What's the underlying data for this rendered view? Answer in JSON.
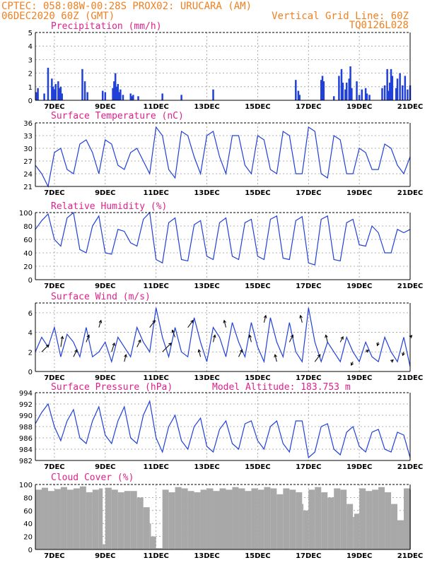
{
  "header": {
    "line1_left": "CPTEC:   058:08W-00:28S   PROX02: URUCARA (AM)",
    "line2_left": "06DEC2020 60Z (GMT)",
    "line2_right": "Vertical Grid Line: 60Z",
    "line3_right": "TQ0126L028"
  },
  "x_axis": {
    "start_day": 6.25,
    "end_day": 21,
    "tick_days": [
      7,
      9,
      11,
      13,
      15,
      17,
      19,
      21
    ],
    "tick_labels": [
      "7DEC",
      "9DEC",
      "11DEC",
      "13DEC",
      "15DEC",
      "17DEC",
      "19DEC",
      "21DEC"
    ]
  },
  "colors": {
    "line": "#2040d8",
    "cloud": "#a8a8a8",
    "arrow": "#000000",
    "title": "#e0208c",
    "header": "#f08020"
  },
  "chart_data": [
    {
      "type": "bar",
      "title": "Precipitation (mm/h)",
      "ylim": [
        0,
        5
      ],
      "yticks": [
        0,
        1,
        2,
        3,
        4,
        5
      ],
      "x": [
        6.3,
        6.35,
        6.6,
        6.75,
        6.9,
        6.95,
        7.0,
        7.05,
        7.15,
        7.2,
        7.25,
        7.3,
        8.1,
        8.2,
        8.3,
        8.9,
        9.0,
        9.3,
        9.35,
        9.4,
        9.45,
        9.5,
        9.55,
        9.6,
        9.7,
        10.0,
        10.05,
        10.1,
        10.3,
        11.25,
        12.0,
        13.25,
        16.5,
        16.6,
        16.65,
        17.5,
        17.55,
        17.6,
        18.0,
        18.2,
        18.3,
        18.35,
        18.45,
        18.5,
        18.6,
        18.65,
        18.7,
        18.9,
        19.0,
        19.1,
        19.25,
        19.3,
        19.4,
        19.9,
        20.0,
        20.1,
        20.15,
        20.2,
        20.25,
        20.3,
        20.45,
        20.5,
        20.6,
        20.7,
        20.8,
        20.9,
        21.0
      ],
      "values": [
        0.6,
        0.9,
        0.5,
        2.4,
        1.6,
        1.0,
        0.8,
        1.2,
        1.4,
        0.9,
        1.0,
        0.5,
        2.3,
        1.4,
        0.6,
        0.7,
        0.6,
        0.9,
        1.4,
        2.0,
        1.0,
        1.2,
        0.6,
        0.8,
        0.4,
        0.5,
        0.3,
        0.4,
        0.3,
        0.5,
        0.4,
        0.8,
        1.5,
        0.7,
        0.4,
        1.5,
        1.8,
        1.4,
        0.3,
        1.8,
        2.3,
        1.3,
        0.8,
        1.3,
        1.6,
        2.5,
        0.9,
        1.4,
        0.4,
        0.8,
        0.9,
        0.5,
        0.4,
        0.9,
        1.1,
        2.3,
        0.7,
        1.3,
        2.3,
        1.8,
        0.9,
        1.6,
        2.0,
        1.1,
        1.8,
        0.8,
        1.1
      ]
    },
    {
      "type": "line",
      "title": "Surface Temperature (nC)",
      "ylim": [
        21,
        36
      ],
      "yticks": [
        21,
        24,
        27,
        30,
        33,
        36
      ],
      "x": [
        6.25,
        6.5,
        6.75,
        7.0,
        7.25,
        7.5,
        7.75,
        8.0,
        8.25,
        8.5,
        8.75,
        9.0,
        9.25,
        9.5,
        9.75,
        10.0,
        10.25,
        10.5,
        10.75,
        11.0,
        11.25,
        11.5,
        11.75,
        12.0,
        12.25,
        12.5,
        12.75,
        13.0,
        13.25,
        13.5,
        13.75,
        14.0,
        14.25,
        14.5,
        14.75,
        15.0,
        15.25,
        15.5,
        15.75,
        16.0,
        16.25,
        16.5,
        16.75,
        17.0,
        17.25,
        17.5,
        17.75,
        18.0,
        18.25,
        18.5,
        18.75,
        19.0,
        19.25,
        19.5,
        19.75,
        20.0,
        20.25,
        20.5,
        20.75,
        21.0
      ],
      "values": [
        26,
        24,
        21,
        29,
        30,
        25,
        24,
        31,
        32,
        29,
        24,
        32,
        31,
        26,
        25,
        29,
        30,
        27,
        24,
        35,
        33,
        25,
        23,
        34,
        33,
        28,
        24,
        33,
        34,
        28,
        24,
        33,
        33,
        26,
        24,
        33,
        32,
        25,
        24,
        34,
        33,
        24,
        24,
        35,
        34,
        24,
        23,
        33,
        32,
        24,
        24,
        30,
        29,
        25,
        25,
        31,
        30,
        26,
        24,
        28
      ]
    },
    {
      "type": "line",
      "title": "Relative Humidity (%)",
      "ylim": [
        0,
        100
      ],
      "yticks": [
        0,
        20,
        40,
        60,
        80,
        100
      ],
      "x": [
        6.25,
        6.5,
        6.75,
        7.0,
        7.25,
        7.5,
        7.75,
        8.0,
        8.25,
        8.5,
        8.75,
        9.0,
        9.25,
        9.5,
        9.75,
        10.0,
        10.25,
        10.5,
        10.75,
        11.0,
        11.25,
        11.5,
        11.75,
        12.0,
        12.25,
        12.5,
        12.75,
        13.0,
        13.25,
        13.5,
        13.75,
        14.0,
        14.25,
        14.5,
        14.75,
        15.0,
        15.25,
        15.5,
        15.75,
        16.0,
        16.25,
        16.5,
        16.75,
        17.0,
        17.25,
        17.5,
        17.75,
        18.0,
        18.25,
        18.5,
        18.75,
        19.0,
        19.25,
        19.5,
        19.75,
        20.0,
        20.25,
        20.5,
        20.75,
        21.0
      ],
      "values": [
        75,
        88,
        98,
        60,
        50,
        92,
        100,
        45,
        40,
        80,
        95,
        40,
        38,
        75,
        72,
        55,
        50,
        90,
        100,
        30,
        25,
        85,
        92,
        30,
        28,
        82,
        88,
        35,
        30,
        85,
        92,
        35,
        30,
        85,
        90,
        35,
        30,
        90,
        95,
        32,
        30,
        88,
        94,
        25,
        22,
        90,
        95,
        30,
        28,
        85,
        90,
        52,
        50,
        80,
        70,
        40,
        40,
        75,
        70,
        75
      ]
    },
    {
      "type": "line",
      "title": "Surface Wind (m/s)",
      "ylim": [
        0,
        7
      ],
      "yticks": [
        0,
        2,
        4,
        6
      ],
      "x": [
        6.25,
        6.5,
        6.75,
        7.0,
        7.25,
        7.5,
        7.75,
        8.0,
        8.25,
        8.5,
        8.75,
        9.0,
        9.25,
        9.5,
        9.75,
        10.0,
        10.25,
        10.5,
        10.75,
        11.0,
        11.25,
        11.5,
        11.75,
        12.0,
        12.25,
        12.5,
        12.75,
        13.0,
        13.25,
        13.5,
        13.75,
        14.0,
        14.25,
        14.5,
        14.75,
        15.0,
        15.25,
        15.5,
        15.75,
        16.0,
        16.25,
        16.5,
        16.75,
        17.0,
        17.25,
        17.5,
        17.75,
        18.0,
        18.25,
        18.5,
        18.75,
        19.0,
        19.25,
        19.5,
        19.75,
        20.0,
        20.25,
        20.5,
        20.75,
        21.0
      ],
      "values": [
        2.0,
        3.5,
        2.5,
        4.5,
        1.5,
        3.8,
        3.0,
        1.5,
        4.5,
        1.5,
        2.0,
        3.0,
        1.0,
        3.5,
        2.5,
        1.5,
        4.5,
        3.0,
        2.0,
        6.5,
        3.5,
        1.5,
        4.5,
        2.0,
        1.5,
        5.5,
        3.0,
        1.0,
        4.5,
        3.5,
        1.5,
        5.0,
        3.0,
        1.5,
        5.0,
        2.5,
        1.0,
        5.5,
        3.0,
        1.5,
        5.0,
        2.0,
        1.0,
        6.5,
        3.0,
        1.0,
        3.0,
        2.0,
        1.0,
        3.5,
        2.0,
        1.0,
        3.0,
        1.5,
        1.0,
        3.5,
        2.0,
        1.0,
        3.5,
        0.5
      ],
      "arrow_x": [
        6.5,
        7.25,
        7.75,
        8.25,
        8.75,
        9.25,
        9.75,
        10.25,
        10.75,
        11.25,
        11.75,
        12.25,
        12.75,
        13.25,
        13.75,
        14.25,
        14.75,
        15.25,
        15.75,
        16.25,
        16.75,
        17.25,
        17.75,
        18.25,
        18.75,
        19.25,
        19.75,
        20.25,
        20.75,
        21.0
      ],
      "arrow_u": [
        2.0,
        0.5,
        1.0,
        0.8,
        0.6,
        0.8,
        0.5,
        1.0,
        1.5,
        2.5,
        -0.8,
        1.5,
        -0.5,
        0.5,
        -0.5,
        1.0,
        -0.5,
        0.5,
        -0.5,
        1.0,
        -0.5,
        1.5,
        -0.5,
        0.8,
        -0.5,
        0.8,
        -0.3,
        0.6,
        -0.3,
        0.5
      ],
      "arrow_v": [
        2.0,
        3.0,
        2.0,
        2.0,
        2.0,
        2.5,
        2.0,
        2.0,
        2.0,
        2.5,
        2.0,
        2.0,
        2.0,
        2.0,
        2.0,
        2.0,
        2.0,
        2.0,
        2.0,
        2.0,
        2.0,
        2.0,
        2.0,
        1.5,
        -1.0,
        0.5,
        -1.0,
        0.5,
        -1.0,
        0.5
      ]
    },
    {
      "type": "line",
      "title": "Surface Pressure (hPa)",
      "annotation": "Model Altitude: 183.753 m",
      "ylim": [
        982,
        994
      ],
      "yticks": [
        982,
        984,
        986,
        988,
        990,
        992,
        994
      ],
      "x": [
        6.25,
        6.5,
        6.75,
        7.0,
        7.25,
        7.5,
        7.75,
        8.0,
        8.25,
        8.5,
        8.75,
        9.0,
        9.25,
        9.5,
        9.75,
        10.0,
        10.25,
        10.5,
        10.75,
        11.0,
        11.25,
        11.5,
        11.75,
        12.0,
        12.25,
        12.5,
        12.75,
        13.0,
        13.25,
        13.5,
        13.75,
        14.0,
        14.25,
        14.5,
        14.75,
        15.0,
        15.25,
        15.5,
        15.75,
        16.0,
        16.25,
        16.5,
        16.75,
        17.0,
        17.25,
        17.5,
        17.75,
        18.0,
        18.25,
        18.5,
        18.75,
        19.0,
        19.25,
        19.5,
        19.75,
        20.0,
        20.25,
        20.5,
        20.75,
        21.0
      ],
      "values": [
        988.5,
        990.5,
        992,
        988,
        985.5,
        989,
        991,
        986,
        985,
        989,
        991.5,
        986.5,
        985,
        989,
        991.5,
        986,
        985,
        990,
        992.5,
        986,
        983.5,
        988,
        990,
        985.5,
        984,
        988,
        989.5,
        984.5,
        983.5,
        987.5,
        989,
        985,
        984,
        988.5,
        989,
        985.5,
        984,
        988,
        989,
        985,
        983.5,
        989,
        989,
        982.5,
        983.5,
        988,
        988.5,
        984,
        983,
        987,
        988,
        984.5,
        983.5,
        987,
        987.5,
        984,
        983.5,
        987,
        986.5,
        982.5
      ]
    },
    {
      "type": "bar",
      "title": "Cloud Cover (%)",
      "ylim": [
        0,
        100
      ],
      "yticks": [
        0,
        20,
        40,
        60,
        80,
        100
      ],
      "x": [
        6.25,
        6.5,
        6.75,
        7.0,
        7.25,
        7.5,
        7.75,
        8.0,
        8.25,
        8.5,
        8.75,
        8.9,
        9.0,
        9.25,
        9.5,
        9.75,
        10.0,
        10.25,
        10.5,
        10.75,
        10.8,
        11.0,
        11.25,
        11.5,
        11.75,
        12.0,
        12.25,
        12.5,
        12.75,
        13.0,
        13.25,
        13.5,
        13.75,
        14.0,
        14.25,
        14.5,
        14.75,
        15.0,
        15.25,
        15.5,
        15.75,
        16.0,
        16.25,
        16.5,
        16.75,
        16.8,
        17.0,
        17.25,
        17.5,
        17.75,
        18.0,
        18.25,
        18.5,
        18.75,
        18.8,
        19.0,
        19.25,
        19.5,
        19.75,
        20.0,
        20.25,
        20.5,
        20.75,
        21.0
      ],
      "values": [
        92,
        95,
        90,
        93,
        96,
        92,
        94,
        97,
        88,
        92,
        94,
        8,
        95,
        92,
        88,
        90,
        90,
        80,
        65,
        40,
        20,
        2,
        92,
        88,
        96,
        94,
        90,
        88,
        92,
        94,
        90,
        94,
        92,
        96,
        94,
        90,
        94,
        92,
        96,
        94,
        85,
        94,
        92,
        88,
        70,
        60,
        92,
        96,
        88,
        80,
        94,
        92,
        70,
        50,
        55,
        94,
        90,
        92,
        96,
        88,
        70,
        45,
        94,
        92
      ]
    }
  ]
}
